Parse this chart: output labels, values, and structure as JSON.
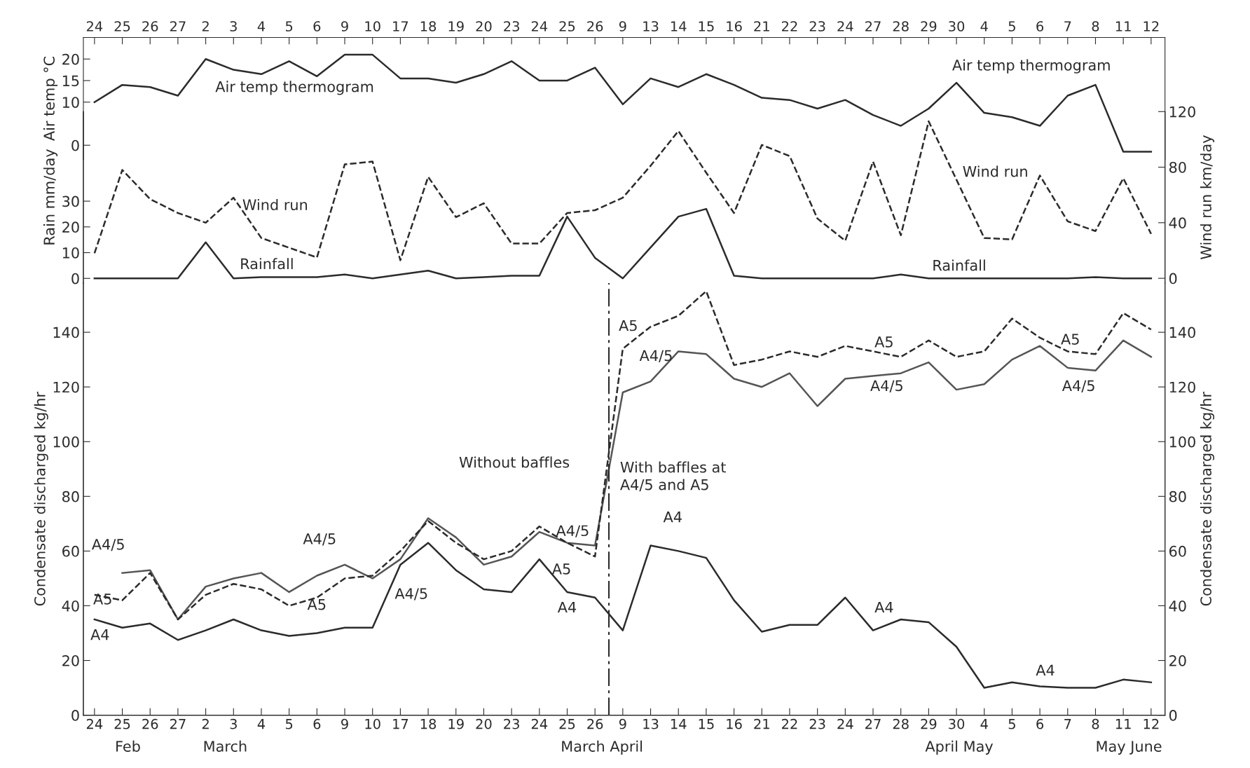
{
  "chart_data": [
    {
      "type": "line",
      "ylabel": "Air temp °C",
      "categories": [
        "24",
        "25",
        "26",
        "27",
        "2",
        "3",
        "4",
        "5",
        "6",
        "9",
        "10",
        "17",
        "18",
        "19",
        "20",
        "23",
        "24",
        "25",
        "26",
        "9",
        "13",
        "14",
        "15",
        "16",
        "21",
        "22",
        "23",
        "24",
        "27",
        "28",
        "29",
        "30",
        "4",
        "5",
        "6",
        "7",
        "8",
        "11",
        "12"
      ],
      "ylim": [
        -3.3,
        25
      ],
      "yticks": [
        0,
        10,
        15,
        20
      ],
      "grid": false,
      "legend": false,
      "series": [
        {
          "color": "#2b2b2b",
          "line_style": "solid",
          "values": [
            10,
            14,
            13.5,
            11.5,
            20,
            17.5,
            16.5,
            19.5,
            16,
            21,
            21,
            15.5,
            15.5,
            14.5,
            16.5,
            19.5,
            15,
            15,
            18,
            9.5,
            15.5,
            13.5,
            16.5,
            14,
            11,
            10.5,
            8.5,
            10.5,
            7,
            4.5,
            8.5,
            14.5,
            7.5,
            6.5,
            4.5,
            11.5,
            14,
            -1.5,
            -1.5
          ]
        }
      ],
      "annotations": [
        "Air temp thermogram",
        "Air temp thermogram"
      ]
    },
    {
      "type": "line",
      "ylabel": "Rain mm/day",
      "y2label": "Wind run km/day",
      "categories": [
        "24",
        "25",
        "26",
        "27",
        "2",
        "3",
        "4",
        "5",
        "6",
        "9",
        "10",
        "17",
        "18",
        "19",
        "20",
        "23",
        "24",
        "25",
        "26",
        "9",
        "13",
        "14",
        "15",
        "16",
        "21",
        "22",
        "23",
        "24",
        "27",
        "28",
        "29",
        "30",
        "4",
        "5",
        "6",
        "7",
        "8",
        "11",
        "12"
      ],
      "ylim": [
        -1.8,
        64.8
      ],
      "yticks": [
        0,
        10,
        20,
        30
      ],
      "y2lim": [
        -3.4,
        120
      ],
      "y2ticks": [
        0,
        40,
        80,
        120
      ],
      "tick_labels": "y",
      "grid": false,
      "legend": false,
      "series": [
        {
          "color": "#2b2b2b",
          "line_style": "solid",
          "values": [
            0,
            0,
            0,
            0,
            14,
            0,
            0.5,
            0.5,
            0.5,
            1.5,
            0,
            1.5,
            3,
            0,
            0.5,
            1,
            1,
            24,
            8,
            0,
            12,
            24,
            27,
            1,
            0,
            0,
            0,
            0,
            0,
            1.5,
            0,
            0,
            0,
            0,
            0,
            0,
            0.5,
            0,
            0
          ]
        },
        {
          "color": "#2b2b2b",
          "line_style": "dashed",
          "axis": "y2",
          "values": [
            18,
            78,
            57,
            47,
            40,
            58,
            29,
            22,
            15,
            82,
            84,
            13,
            73,
            44,
            54,
            25,
            25,
            47,
            49,
            58,
            81,
            106,
            76,
            47,
            96,
            88,
            43,
            27,
            84,
            31,
            113,
            71,
            29,
            28,
            74,
            41,
            34,
            72,
            32
          ]
        }
      ],
      "annotations": [
        "Wind run",
        "Wind run",
        "Rainfall",
        "Rainfall"
      ]
    },
    {
      "type": "line",
      "ylabel": "Condensate discharged kg/hr",
      "y2label": "Condensate discharged kg/hr",
      "categories": [
        "24",
        "25",
        "26",
        "27",
        "2",
        "3",
        "4",
        "5",
        "6",
        "9",
        "10",
        "17",
        "18",
        "19",
        "20",
        "23",
        "24",
        "25",
        "26",
        "9",
        "13",
        "14",
        "15",
        "16",
        "21",
        "22",
        "23",
        "24",
        "27",
        "28",
        "29",
        "30",
        "4",
        "5",
        "6",
        "7",
        "8",
        "11",
        "12"
      ],
      "ylim": [
        0,
        158
      ],
      "yticks": [
        0,
        20,
        40,
        60,
        80,
        100,
        120,
        140
      ],
      "y2lim": [
        0,
        158
      ],
      "y2ticks": [
        0,
        20,
        40,
        60,
        80,
        100,
        120,
        140
      ],
      "grid": false,
      "legend": false,
      "series": [
        {
          "color": "#2b2b2b",
          "line_style": "solid",
          "values": [
            35,
            32,
            33.5,
            27.5,
            31,
            35,
            31,
            29,
            30,
            32,
            32,
            55,
            63,
            53,
            46,
            45,
            57,
            45,
            43,
            31,
            62,
            60,
            57.5,
            42,
            30.5,
            33,
            33,
            43,
            31,
            35,
            34,
            25,
            10,
            12,
            10.5,
            10,
            10,
            13,
            12
          ]
        },
        {
          "color": "#555555",
          "line_style": "solid",
          "values": [
            null,
            52,
            53,
            35,
            47,
            50,
            52,
            45,
            51,
            55,
            50,
            57,
            72,
            65,
            55,
            58,
            67,
            63,
            62,
            118,
            122,
            133,
            132,
            123,
            120,
            125,
            113,
            123,
            124,
            125,
            129,
            119,
            121,
            130,
            135,
            127,
            126,
            137,
            131
          ]
        },
        {
          "color": "#2b2b2b",
          "line_style": "dashed",
          "values": [
            44,
            42,
            52,
            35,
            44,
            48,
            46,
            40,
            43,
            50,
            51,
            60,
            71,
            63,
            57,
            60,
            69,
            63,
            58,
            134,
            142,
            146,
            155,
            128,
            130,
            133,
            131,
            135,
            133,
            131,
            137,
            131,
            133,
            145,
            138,
            133,
            132,
            147,
            141
          ]
        }
      ],
      "annotations": [
        "A4/5",
        "A5",
        "A4",
        "A4/5",
        "A5",
        "A4/5",
        "Without baffles",
        "A4/5",
        "A5",
        "A4",
        "With baffles at\nA4/5 and A5",
        "A5",
        "A4/5",
        "A4",
        "A5",
        "A4/5",
        "A4",
        "A5",
        "A4/5",
        "A4",
        "Feb",
        "March",
        "March April",
        "April May",
        "May June"
      ]
    }
  ]
}
